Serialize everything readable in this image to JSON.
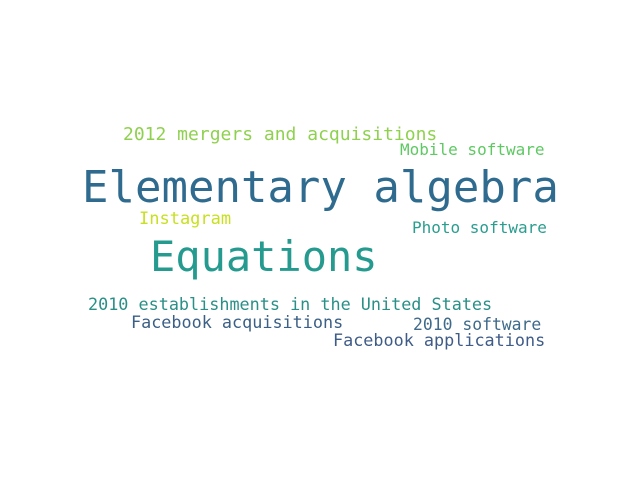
{
  "words": [
    {
      "text": "2012 mergers and acquisitions",
      "color": "#8fd14f"
    },
    {
      "text": "Mobile software",
      "color": "#5ec962"
    },
    {
      "text": "Elementary algebra",
      "color": "#2f6b8e"
    },
    {
      "text": "Instagram",
      "color": "#c8e020"
    },
    {
      "text": "Photo software",
      "color": "#2a9d8f"
    },
    {
      "text": "Equations",
      "color": "#259a8f"
    },
    {
      "text": "2010 establishments in the United States",
      "color": "#2a8f87"
    },
    {
      "text": "Facebook acquisitions",
      "color": "#3b5f85"
    },
    {
      "text": "2010 software",
      "color": "#3f6a8a"
    },
    {
      "text": "Facebook applications",
      "color": "#3f5b87"
    }
  ]
}
